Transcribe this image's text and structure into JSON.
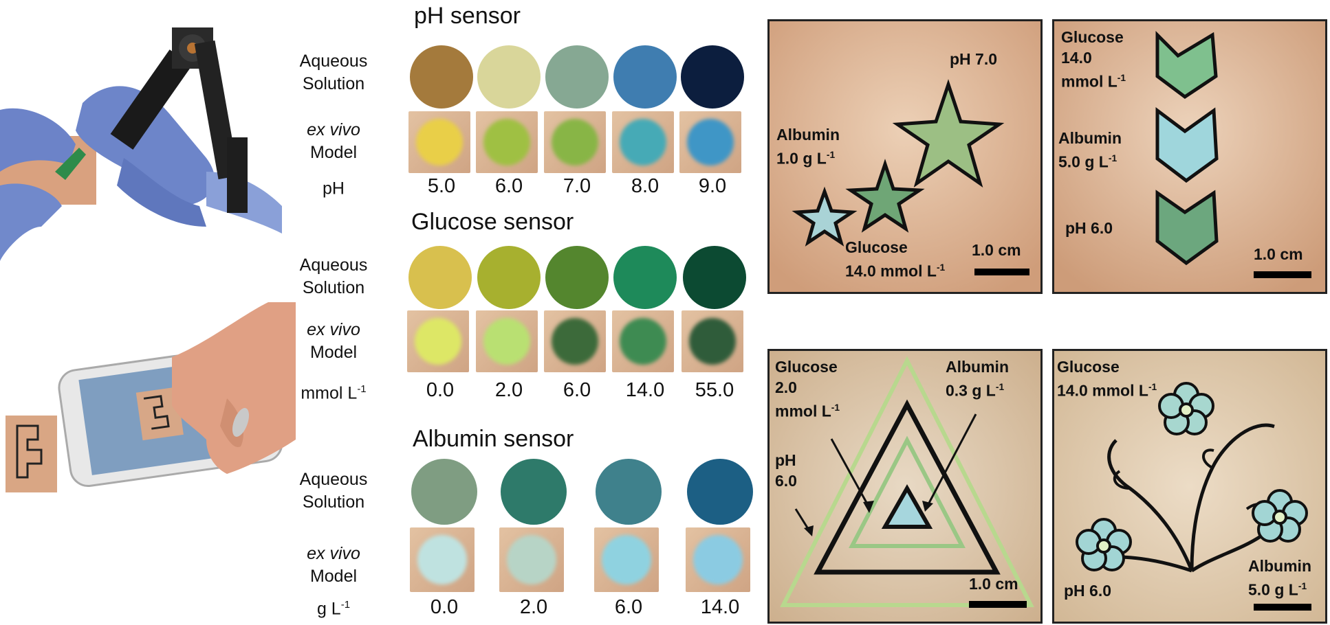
{
  "sensors": [
    {
      "title": "pH sensor",
      "row_aqueous": {
        "line1": "Aqueous",
        "line2": "Solution"
      },
      "row_model": {
        "line1": "ex vivo",
        "line2": "Model"
      },
      "unit": "pH",
      "unit_sup": "",
      "values": [
        "5.0",
        "6.0",
        "7.0",
        "8.0",
        "9.0"
      ],
      "solution_colors": [
        "#a47a3c",
        "#d9d69a",
        "#86a893",
        "#3f7db0",
        "#0c1e3e"
      ],
      "sample_colors": [
        "#e9cf48",
        "#9fc043",
        "#88b546",
        "#46aab6",
        "#3f96c6"
      ]
    },
    {
      "title": "Glucose sensor",
      "row_aqueous": {
        "line1": "Aqueous",
        "line2": "Solution"
      },
      "row_model": {
        "line1": "ex vivo",
        "line2": "Model"
      },
      "unit": "mmol L",
      "unit_sup": "-1",
      "values": [
        "0.0",
        "2.0",
        "6.0",
        "14.0",
        "55.0"
      ],
      "solution_colors": [
        "#d8c04e",
        "#a7b02f",
        "#54862e",
        "#1e8a5a",
        "#0c4a32"
      ],
      "sample_colors": [
        "#dde766",
        "#b9e072",
        "#3c6a3a",
        "#3e8b52",
        "#2f5c3a"
      ]
    },
    {
      "title": "Albumin sensor",
      "row_aqueous": {
        "line1": "Aqueous",
        "line2": "Solution"
      },
      "row_model": {
        "line1": "ex vivo",
        "line2": "Model"
      },
      "unit": "g L",
      "unit_sup": "-1",
      "values": [
        "0.0",
        "2.0",
        "6.0",
        "14.0"
      ],
      "solution_colors": [
        "#7f9d82",
        "#2e7a6a",
        "#3f818c",
        "#1c5f84"
      ],
      "sample_colors": [
        "#bfe2e0",
        "#b7d4c6",
        "#8fd2e0",
        "#8bcbe2"
      ]
    }
  ],
  "panels": {
    "stars": {
      "labels": [
        {
          "line1": "pH 7.0",
          "line2": "",
          "sup": ""
        },
        {
          "line1": "Albumin",
          "line2": "1.0 g L",
          "sup": "-1"
        },
        {
          "line1": "Glucose",
          "line2": "14.0 mmol L",
          "sup": "-1"
        }
      ],
      "scale": "1.0 cm"
    },
    "chevrons": {
      "labels": [
        {
          "line1": "Glucose",
          "line2": "14.0",
          "line3": "mmol L",
          "sup": "-1"
        },
        {
          "line1": "Albumin",
          "line2": "5.0 g L",
          "sup": "-1"
        },
        {
          "line1": "pH 6.0",
          "line2": "",
          "sup": ""
        }
      ],
      "scale": "1.0 cm"
    },
    "triangles": {
      "labels": [
        {
          "line1": "Glucose",
          "line2": "2.0",
          "line3": "mmol L",
          "sup": "-1"
        },
        {
          "line1": "Albumin",
          "line2": "0.3 g L",
          "sup": "-1"
        },
        {
          "line1": "pH",
          "line2": "6.0",
          "sup": ""
        }
      ],
      "scale": "1.0 cm"
    },
    "flowers": {
      "labels": [
        {
          "line1": "Glucose",
          "line2": "14.0 mmol L",
          "sup": "-1"
        },
        {
          "line1": "Albumin",
          "line2": "5.0 g L",
          "sup": "-1"
        },
        {
          "line1": "pH 6.0",
          "line2": "",
          "sup": ""
        }
      ],
      "scale": "1.0 cm"
    }
  },
  "colors": {
    "skin_light": "#e9c9a6",
    "skin_mid": "#d9ad88",
    "glove": "#6f86c9",
    "tattoo_line": "#111111"
  }
}
